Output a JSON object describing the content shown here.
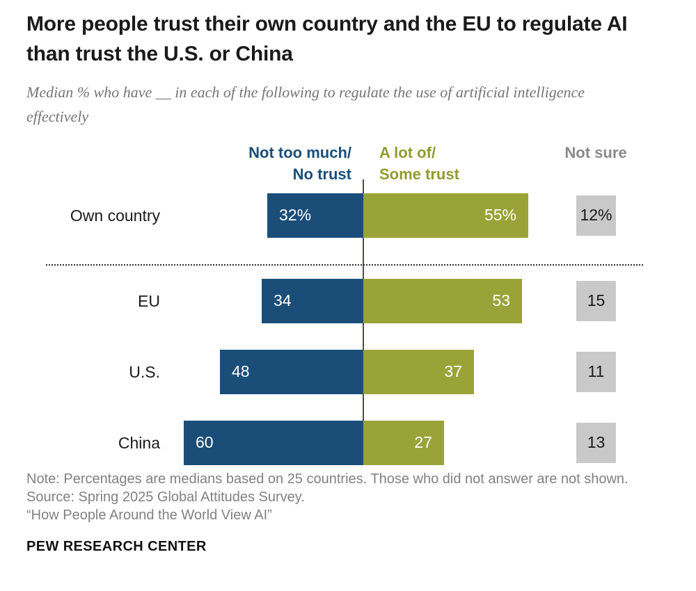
{
  "header": {
    "title": "More people trust their own country and the EU to regulate AI than trust the U.S. or China",
    "subtitle": "Median % who have __ in each of the following to regulate the use of artificial intelligence effectively"
  },
  "legend": {
    "no_trust_line1": "Not too much/",
    "no_trust_line2": "No trust",
    "trust_line1": "A lot of/",
    "trust_line2": "Some trust",
    "not_sure": "Not sure"
  },
  "chart_data": {
    "type": "bar",
    "orientation": "horizontal-diverging",
    "title": "More people trust their own country and the EU to regulate AI than trust the U.S. or China",
    "subtitle": "Median % who have __ in each of the following to regulate the use of artificial intelligence effectively",
    "categories": [
      "Own country",
      "EU",
      "U.S.",
      "China"
    ],
    "series": [
      {
        "name": "Not too much/No trust",
        "color": "#1a4e79",
        "values": [
          32,
          34,
          48,
          60
        ]
      },
      {
        "name": "A lot of/Some trust",
        "color": "#9aa338",
        "values": [
          55,
          53,
          37,
          27
        ]
      },
      {
        "name": "Not sure",
        "color": "#c9c9c9",
        "values": [
          12,
          15,
          11,
          13
        ]
      }
    ],
    "unit": "%",
    "xlim": [
      0,
      100
    ],
    "legend_position": "top",
    "grid": false
  },
  "rows": [
    {
      "label": "Own country",
      "no_trust": 32,
      "no_trust_label": "32%",
      "trust": 55,
      "trust_label": "55%",
      "not_sure": 12,
      "not_sure_label": "12%"
    },
    {
      "label": "EU",
      "no_trust": 34,
      "no_trust_label": "34",
      "trust": 53,
      "trust_label": "53",
      "not_sure": 15,
      "not_sure_label": "15"
    },
    {
      "label": "U.S.",
      "no_trust": 48,
      "no_trust_label": "48",
      "trust": 37,
      "trust_label": "37",
      "not_sure": 11,
      "not_sure_label": "11"
    },
    {
      "label": "China",
      "no_trust": 60,
      "no_trust_label": "60",
      "trust": 27,
      "trust_label": "27",
      "not_sure": 13,
      "not_sure_label": "13"
    }
  ],
  "footer": {
    "note": "Note: Percentages are medians based on 25 countries. Those who did not answer are not shown.",
    "source": "Source: Spring 2025 Global Attitudes Survey.",
    "report": "“How People Around the World View AI”",
    "brand": "PEW RESEARCH CENTER"
  },
  "colors": {
    "blue": "#1a4e79",
    "green": "#9aa338",
    "gray_box": "#c9c9c9",
    "gray_text": "#8a8a8a"
  }
}
